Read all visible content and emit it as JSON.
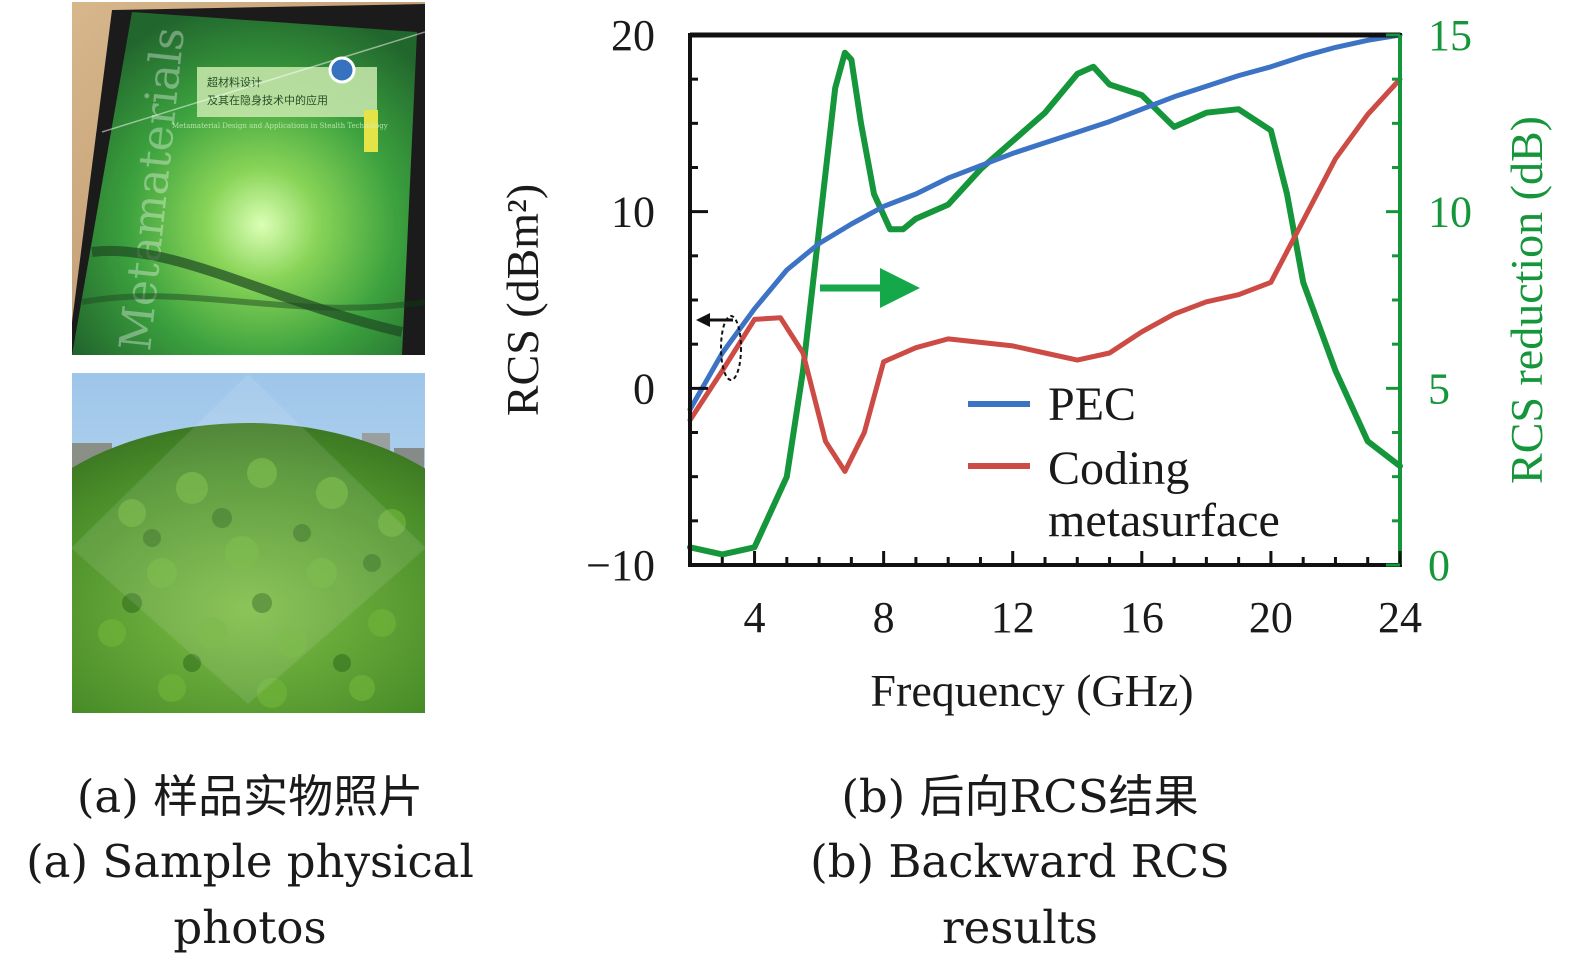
{
  "panel_a": {
    "caption_cn": "(a) 样品实物照片",
    "caption_en_line1": "(a) Sample physical",
    "caption_en_line2": "photos",
    "book_title_cn_line1": "超材料设计",
    "book_title_cn_line2": "及其在隐身技术中的应用",
    "book_spine_text": "Metamaterials",
    "book_subtitle_en": "Metamaterial Design and Applications in Stealth Technology"
  },
  "panel_b": {
    "caption_cn": "(b) 后向RCS结果",
    "caption_en_line1": "(b) Backward RCS",
    "caption_en_line2": "results"
  },
  "chart_data": {
    "type": "line",
    "xlabel": "Frequency (GHz)",
    "ylabel": "RCS (dBm²)",
    "y2label": "RCS reduction (dB)",
    "xlim": [
      2,
      24
    ],
    "ylim": [
      -10,
      20
    ],
    "y2lim": [
      0,
      15
    ],
    "x_ticks": [
      4,
      8,
      12,
      16,
      20,
      24
    ],
    "y_ticks": [
      -10,
      0,
      10,
      20
    ],
    "y_tick_labels": [
      "−10",
      "0",
      "10",
      "20"
    ],
    "y2_ticks": [
      0,
      5,
      10,
      15
    ],
    "legend_position": "lower-right",
    "series": [
      {
        "name": "PEC",
        "axis": "left",
        "color": "#3d73c4",
        "x": [
          2,
          3,
          4,
          5,
          6,
          7,
          8,
          9,
          10,
          11,
          12,
          13,
          14,
          15,
          16,
          17,
          18,
          19,
          20,
          21,
          22,
          23,
          24
        ],
        "y": [
          -1.2,
          2.0,
          4.5,
          6.7,
          8.2,
          9.3,
          10.3,
          11.0,
          11.9,
          12.6,
          13.3,
          13.9,
          14.5,
          15.1,
          15.8,
          16.5,
          17.1,
          17.7,
          18.2,
          18.8,
          19.3,
          19.7,
          20.0
        ]
      },
      {
        "name": "Coding metasurface",
        "axis": "left",
        "color": "#cc4b45",
        "x": [
          2,
          3,
          4,
          4.8,
          5.5,
          6.2,
          6.8,
          7.4,
          8,
          9,
          10,
          11,
          12,
          13,
          14,
          15,
          16,
          17,
          18,
          19,
          20,
          21,
          22,
          23,
          24
        ],
        "y": [
          -1.8,
          1.0,
          3.9,
          4.0,
          2.0,
          -3.0,
          -4.7,
          -2.5,
          1.5,
          2.3,
          2.8,
          2.6,
          2.4,
          2.0,
          1.6,
          2.0,
          3.2,
          4.2,
          4.9,
          5.3,
          6.0,
          9.5,
          13.0,
          15.5,
          17.5
        ]
      },
      {
        "name": "RCS reduction",
        "axis": "right",
        "color": "#15963a",
        "x": [
          2,
          3,
          4,
          5,
          5.5,
          6,
          6.5,
          6.8,
          7.0,
          7.3,
          7.7,
          8.2,
          8.6,
          9,
          10,
          11,
          12,
          13,
          14,
          14.5,
          15,
          16,
          17,
          18,
          19,
          20,
          20.5,
          21,
          22,
          23,
          24
        ],
        "y": [
          0.5,
          0.3,
          0.5,
          2.5,
          5.5,
          9.5,
          13.5,
          14.5,
          14.3,
          12.5,
          10.5,
          9.5,
          9.5,
          9.8,
          10.2,
          11.2,
          12.0,
          12.8,
          13.9,
          14.1,
          13.6,
          13.3,
          12.4,
          12.8,
          12.9,
          12.3,
          10.5,
          8.0,
          5.5,
          3.5,
          2.8
        ]
      }
    ]
  }
}
